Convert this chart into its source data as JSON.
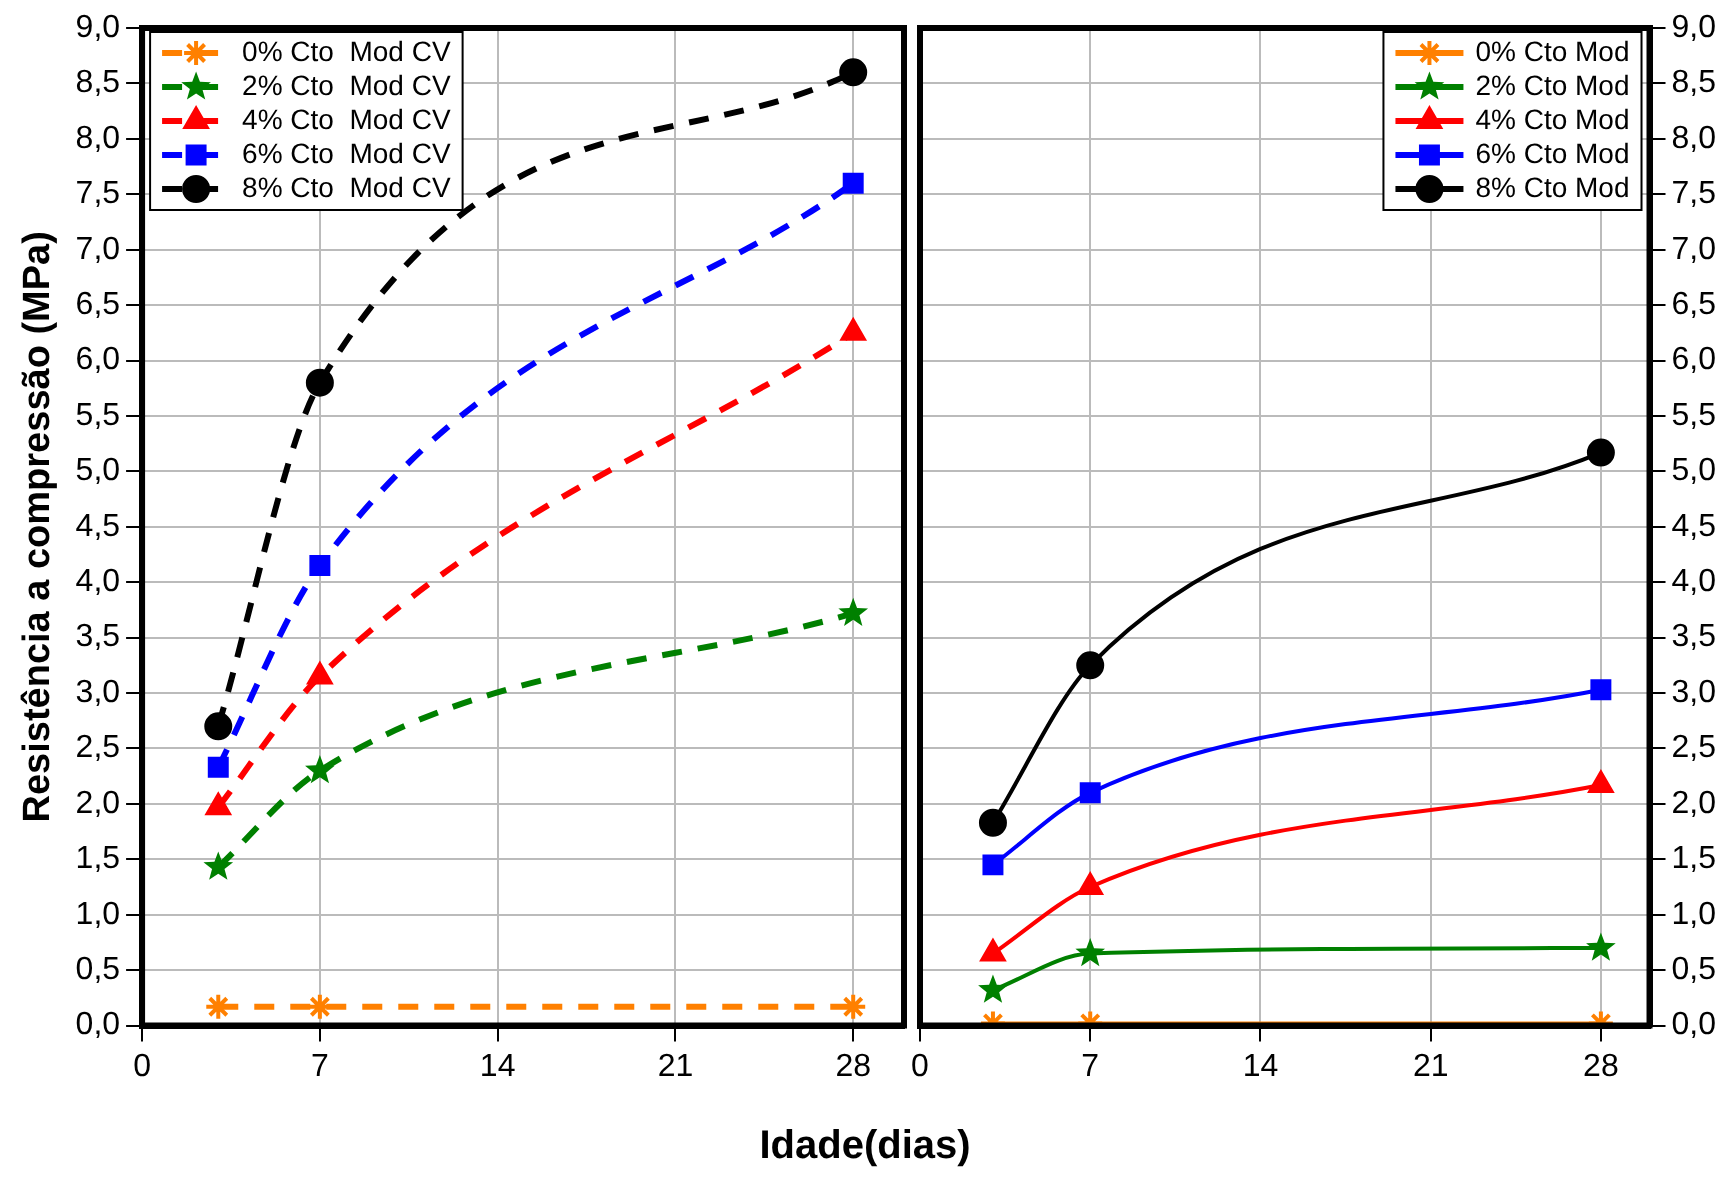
{
  "chart_data": [
    {
      "type": "line",
      "xlabel": "Idade(dias)",
      "ylabel": "Resistência a compressão (MPa)",
      "xlim": [
        0,
        30
      ],
      "xticks": [
        0,
        7,
        14,
        21,
        28
      ],
      "ylim": [
        0,
        9
      ],
      "yticks": [
        {
          "value": 0,
          "label": "0,0"
        },
        {
          "value": 0.5,
          "label": "0,5"
        },
        {
          "value": 1,
          "label": "1,0"
        },
        {
          "value": 1.5,
          "label": "1,5"
        },
        {
          "value": 2,
          "label": "2,0"
        },
        {
          "value": 2.5,
          "label": "2,5"
        },
        {
          "value": 3,
          "label": "3,0"
        },
        {
          "value": 3.5,
          "label": "3,5"
        },
        {
          "value": 4,
          "label": "4,0"
        },
        {
          "value": 4.5,
          "label": "4,5"
        },
        {
          "value": 5,
          "label": "5,0"
        },
        {
          "value": 5.5,
          "label": "5,5"
        },
        {
          "value": 6,
          "label": "6,0"
        },
        {
          "value": 6.5,
          "label": "6,5"
        },
        {
          "value": 7,
          "label": "7,0"
        },
        {
          "value": 7.5,
          "label": "7,5"
        },
        {
          "value": 8,
          "label": "8,0"
        },
        {
          "value": 8.5,
          "label": "8,5"
        },
        {
          "value": 9,
          "label": "9,0"
        }
      ],
      "x": [
        3,
        7,
        28
      ],
      "grid": true,
      "legend": "top left",
      "line_style": "dashed",
      "series": [
        {
          "name": "0% Cto  Mod CV",
          "color": "#ff8000",
          "marker": "cross",
          "values": [
            0.17,
            0.17,
            0.17
          ]
        },
        {
          "name": "2% Cto  Mod CV",
          "color": "#008000",
          "marker": "star",
          "values": [
            1.43,
            2.3,
            3.72
          ]
        },
        {
          "name": "4% Cto  Mod CV",
          "color": "#ff0000",
          "marker": "triangle",
          "values": [
            1.97,
            3.15,
            6.25
          ]
        },
        {
          "name": "6% Cto  Mod CV",
          "color": "#0000ff",
          "marker": "square",
          "values": [
            2.33,
            4.15,
            7.6
          ]
        },
        {
          "name": "8% Cto  Mod CV",
          "color": "#000000",
          "marker": "circle",
          "values": [
            2.7,
            5.8,
            8.6
          ]
        }
      ]
    },
    {
      "type": "line",
      "xlim": [
        0,
        30
      ],
      "xticks": [
        0,
        7,
        14,
        21,
        28
      ],
      "y2lim": [
        0,
        9
      ],
      "y2ticks": [
        {
          "value": 0,
          "label": "0,0"
        },
        {
          "value": 0.5,
          "label": "0,5"
        },
        {
          "value": 1,
          "label": "1,0"
        },
        {
          "value": 1.5,
          "label": "1,5"
        },
        {
          "value": 2,
          "label": "2,0"
        },
        {
          "value": 2.5,
          "label": "2,5"
        },
        {
          "value": 3,
          "label": "3,0"
        },
        {
          "value": 3.5,
          "label": "3,5"
        },
        {
          "value": 4,
          "label": "4,0"
        },
        {
          "value": 4.5,
          "label": "4,5"
        },
        {
          "value": 5,
          "label": "5,0"
        },
        {
          "value": 5.5,
          "label": "5,5"
        },
        {
          "value": 6,
          "label": "6,0"
        },
        {
          "value": 6.5,
          "label": "6,5"
        },
        {
          "value": 7,
          "label": "7,0"
        },
        {
          "value": 7.5,
          "label": "7,5"
        },
        {
          "value": 8,
          "label": "8,0"
        },
        {
          "value": 8.5,
          "label": "8,5"
        },
        {
          "value": 9,
          "label": "9,0"
        }
      ],
      "x": [
        3,
        7,
        28
      ],
      "grid": true,
      "legend": "top right",
      "line_style": "solid",
      "series": [
        {
          "name": "0% Cto Mod",
          "color": "#ff8000",
          "marker": "cross",
          "axis": "y2",
          "values": [
            0.02,
            0.02,
            0.02
          ]
        },
        {
          "name": "2% Cto Mod",
          "color": "#008000",
          "marker": "star",
          "axis": "y2",
          "values": [
            0.32,
            0.65,
            0.7
          ]
        },
        {
          "name": "4% Cto Mod",
          "color": "#ff0000",
          "marker": "triangle",
          "axis": "y2",
          "values": [
            0.65,
            1.25,
            2.17
          ]
        },
        {
          "name": "6% Cto Mod",
          "color": "#0000ff",
          "marker": "square",
          "axis": "y2",
          "values": [
            1.45,
            2.1,
            3.03
          ]
        },
        {
          "name": "8% Cto Mod",
          "color": "#000000",
          "marker": "circle",
          "axis": "y2",
          "values": [
            1.83,
            3.25,
            5.17
          ]
        }
      ]
    }
  ]
}
